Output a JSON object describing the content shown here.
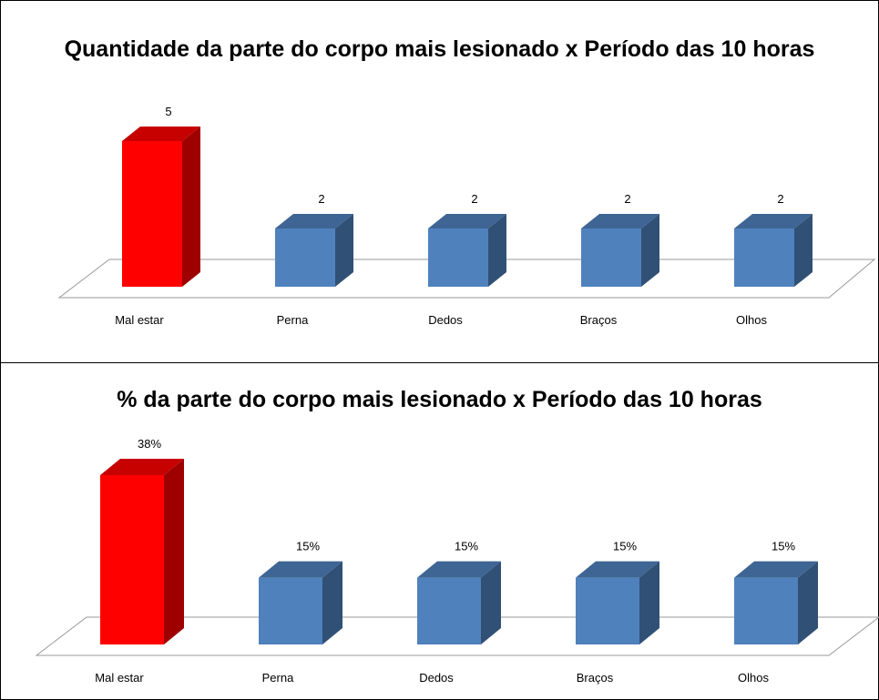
{
  "chart_data": [
    {
      "type": "bar3d",
      "title": "Quantidade da parte do corpo mais lesionado x Período das 10 horas",
      "categories": [
        "Mal estar",
        "Perna",
        "Dedos",
        "Braços",
        "Olhos"
      ],
      "values": [
        5,
        2,
        2,
        2,
        2
      ],
      "colors": [
        "#ff0000",
        "#4f81bd",
        "#4f81bd",
        "#4f81bd",
        "#4f81bd"
      ]
    },
    {
      "type": "bar3d",
      "title": "% da parte do corpo mais lesionado x Período das 10 horas",
      "categories": [
        "Mal estar",
        "Perna",
        "Dedos",
        "Braços",
        "Olhos"
      ],
      "values": [
        38,
        15,
        15,
        15,
        15
      ],
      "value_labels": [
        "38%",
        "15%",
        "15%",
        "15%",
        "15%"
      ],
      "colors": [
        "#ff0000",
        "#4f81bd",
        "#4f81bd",
        "#4f81bd",
        "#4f81bd"
      ]
    }
  ]
}
